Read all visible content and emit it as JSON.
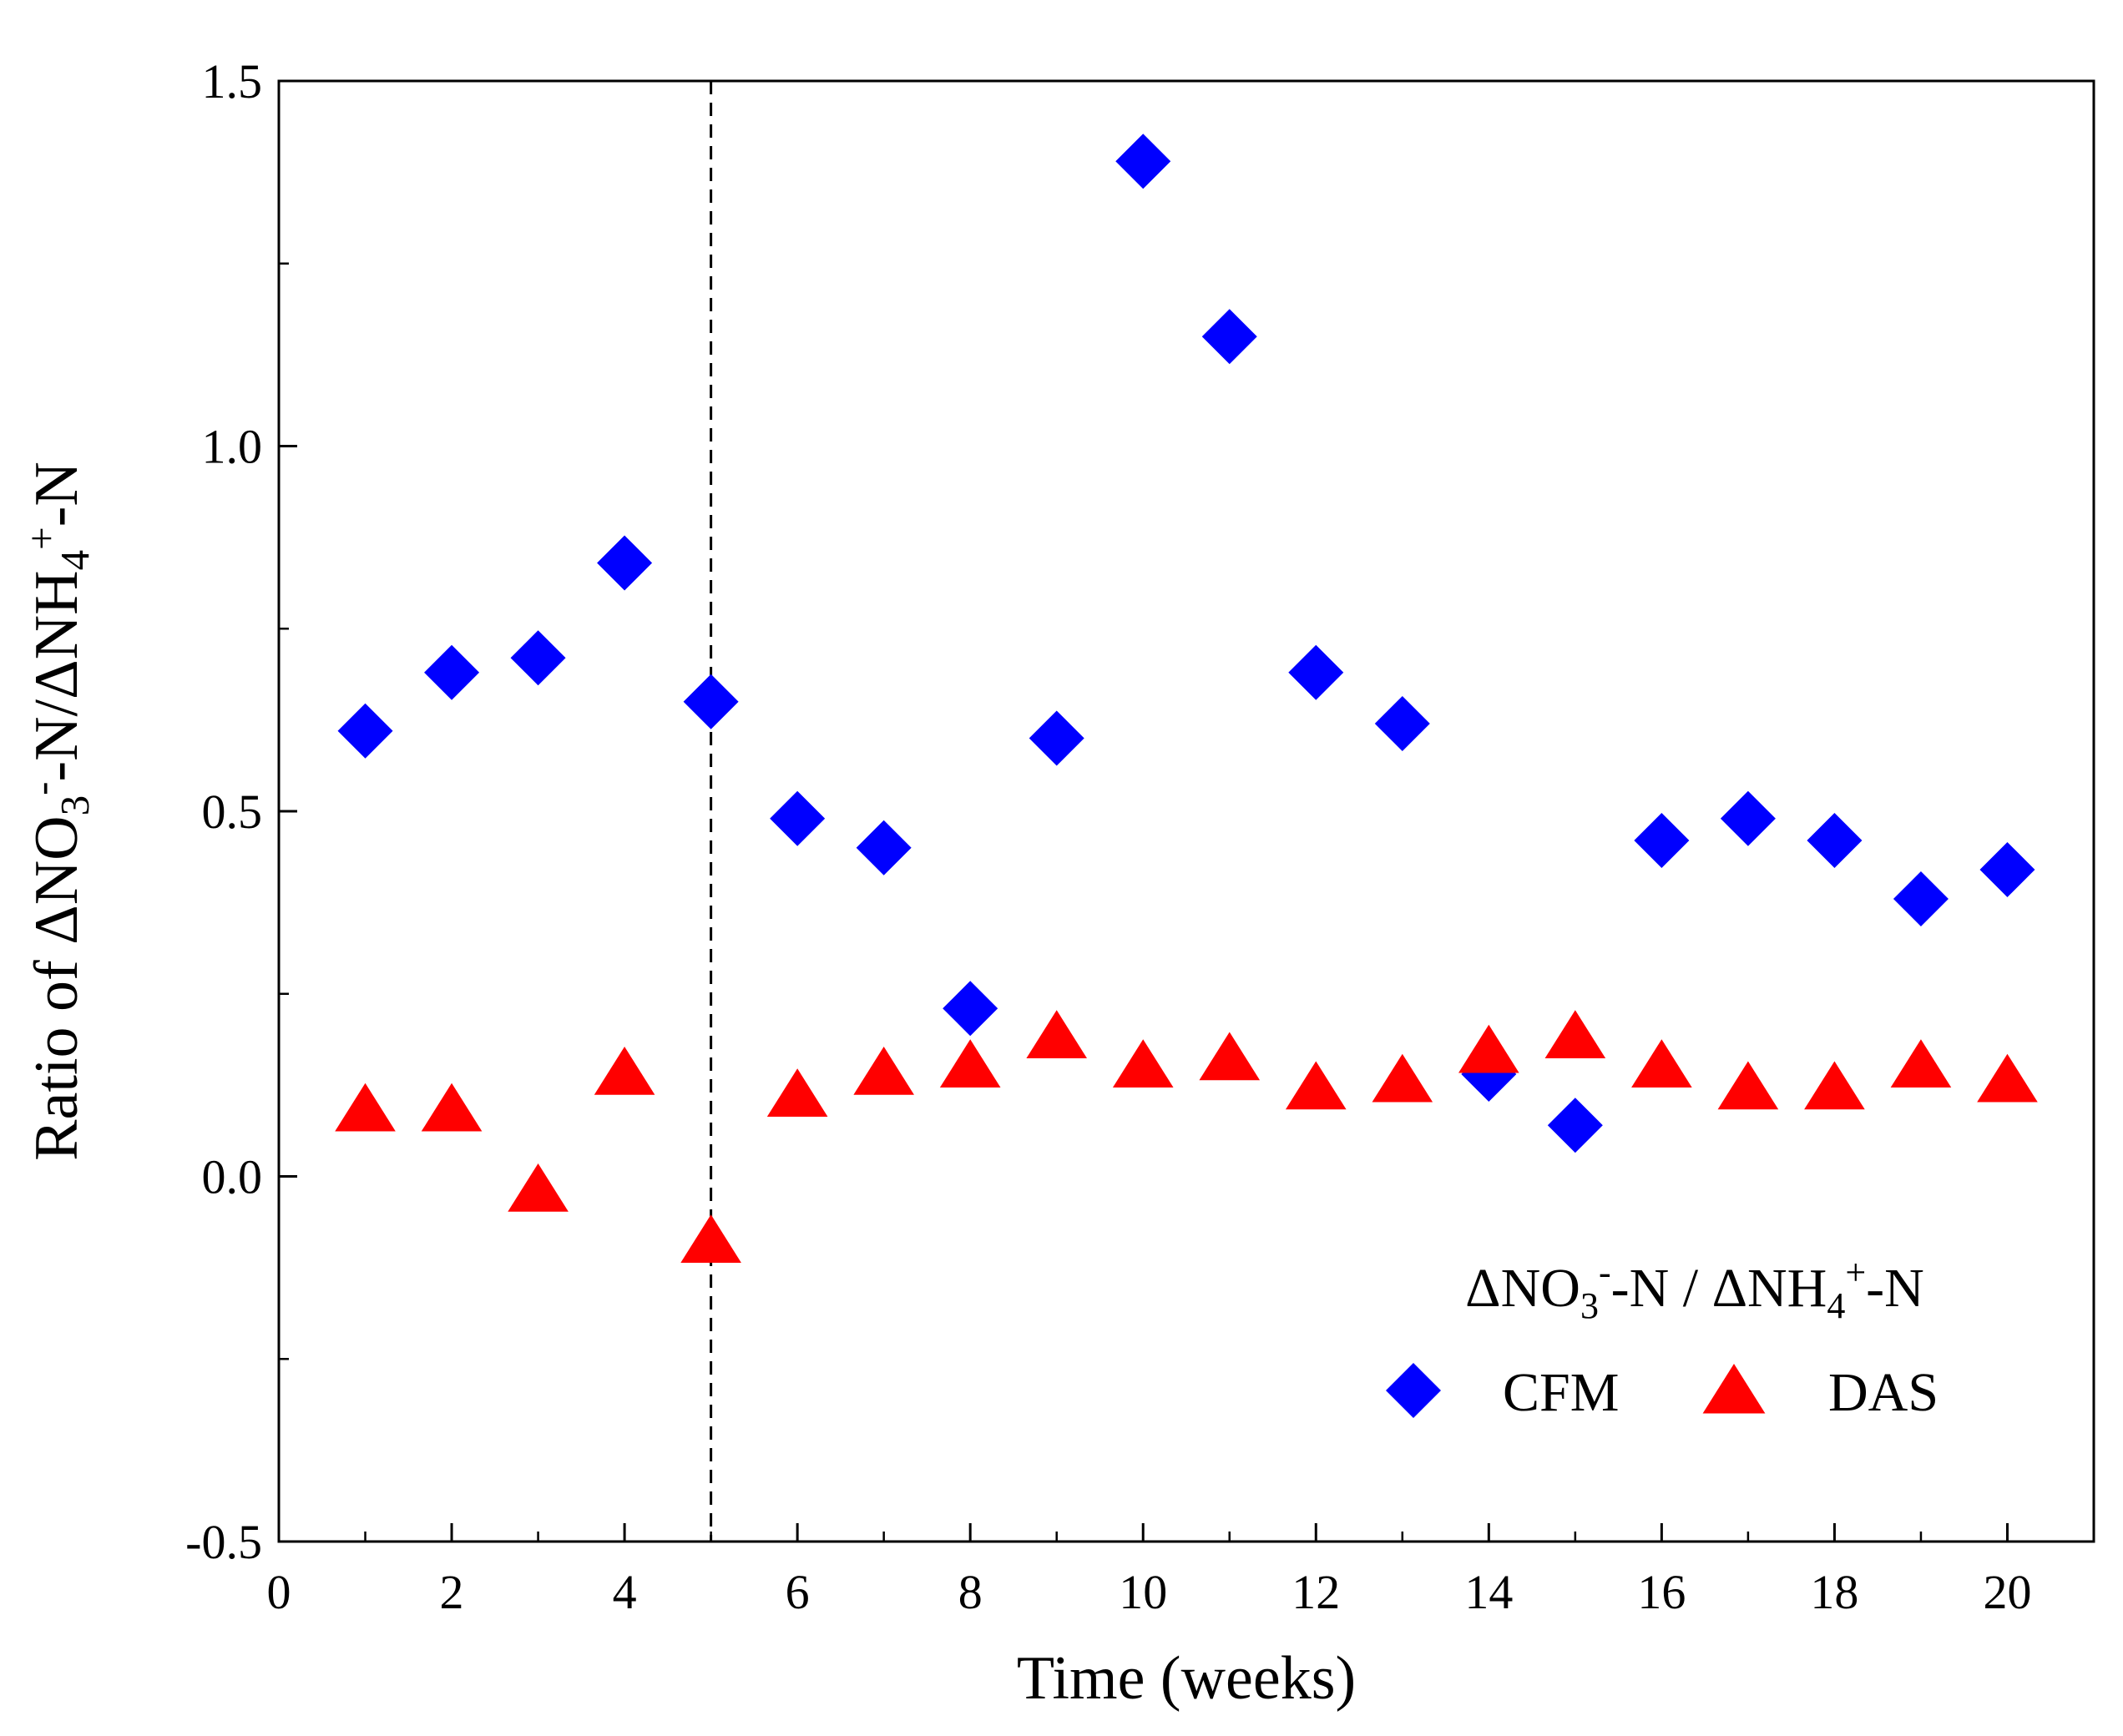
{
  "chart_data": {
    "type": "scatter",
    "xlabel": "Time (weeks)",
    "ylabel": {
      "parts": [
        "Ratio of ΔNO",
        "3",
        "-",
        "-N/ΔNH",
        "4",
        "+",
        "-N"
      ]
    },
    "xlim": [
      0,
      21
    ],
    "ylim": [
      -0.5,
      1.5
    ],
    "xticks": [
      0,
      2,
      4,
      6,
      8,
      10,
      12,
      14,
      16,
      18,
      20
    ],
    "xtick_labels": [
      "0",
      "2",
      "4",
      "6",
      "8",
      "10",
      "12",
      "14",
      "16",
      "18",
      "20"
    ],
    "yticks": [
      -0.5,
      0.0,
      0.5,
      1.0,
      1.5
    ],
    "ytick_labels": [
      "-0.5",
      "0.0",
      "0.5",
      "1.0",
      "1.5"
    ],
    "vertical_line": {
      "x": 5,
      "style": "dashed"
    },
    "legend": {
      "title_parts": [
        "ΔNO",
        "3",
        "-",
        "-N / ΔNH",
        "4",
        "+",
        "-N"
      ],
      "placement": "lower-right"
    },
    "series": [
      {
        "name": "CFM",
        "marker": "diamond",
        "color": "#0000ff",
        "x": [
          1,
          2,
          3,
          4,
          5,
          6,
          7,
          8,
          9,
          10,
          11,
          12,
          13,
          14,
          15,
          16,
          17,
          18,
          19,
          20
        ],
        "y": [
          0.61,
          0.69,
          0.71,
          0.84,
          0.65,
          0.49,
          0.45,
          0.23,
          0.6,
          1.39,
          1.15,
          0.69,
          0.62,
          0.14,
          0.07,
          0.46,
          0.49,
          0.46,
          0.38,
          0.42
        ]
      },
      {
        "name": "DAS",
        "marker": "triangle",
        "color": "#ff0000",
        "x": [
          1,
          2,
          3,
          4,
          5,
          6,
          7,
          8,
          9,
          10,
          11,
          12,
          13,
          14,
          15,
          16,
          17,
          18,
          19,
          20
        ],
        "y": [
          0.09,
          0.09,
          -0.02,
          0.14,
          -0.09,
          0.11,
          0.14,
          0.15,
          0.19,
          0.15,
          0.16,
          0.12,
          0.13,
          0.17,
          0.19,
          0.15,
          0.12,
          0.12,
          0.15,
          0.13
        ]
      }
    ]
  }
}
